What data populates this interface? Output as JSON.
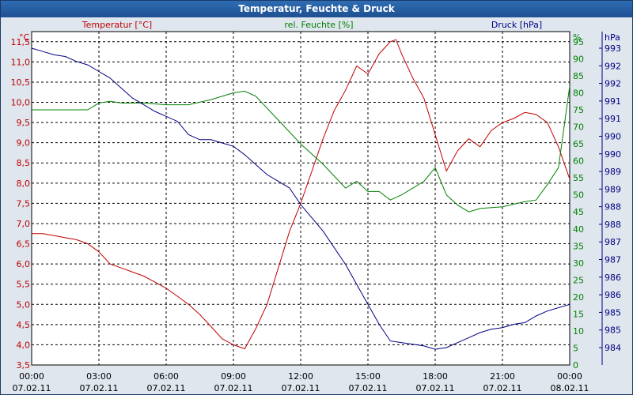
{
  "window": {
    "title": "Temperatur, Feuchte & Druck"
  },
  "chart_data": {
    "type": "line",
    "title": "Temperatur, Feuchte & Druck",
    "x": [
      "00:00",
      "03:00",
      "06:00",
      "09:00",
      "12:00",
      "15:00",
      "18:00",
      "21:00",
      "00:00"
    ],
    "x_dates": [
      "07.02.11",
      "07.02.11",
      "07.02.11",
      "07.02.11",
      "07.02.11",
      "07.02.11",
      "07.02.11",
      "07.02.11",
      "08.02.11"
    ],
    "axes": {
      "left": {
        "label": "Temperatur [°C]",
        "unit": "°C",
        "min": 3.5,
        "max": 11.75,
        "color": "#c00000",
        "ticks": [
          "3,5",
          "4,0",
          "4,5",
          "5,0",
          "5,5",
          "6,0",
          "6,5",
          "7,0",
          "7,5",
          "8,0",
          "8,5",
          "9,0",
          "9,5",
          "10,0",
          "10,5",
          "11,0",
          "11,5"
        ]
      },
      "middle": {
        "label": "rel. Feuchte [%]",
        "unit": "%",
        "min": 0,
        "max": 98,
        "color": "#008000",
        "ticks": [
          "0",
          "5",
          "10",
          "15",
          "20",
          "25",
          "30",
          "35",
          "40",
          "45",
          "50",
          "55",
          "60",
          "65",
          "70",
          "75",
          "80",
          "85",
          "90",
          "95"
        ]
      },
      "right": {
        "label": "Druck [hPa]",
        "unit": "hPa",
        "color": "#000080",
        "ticks": [
          "984",
          "985",
          "985",
          "986",
          "986",
          "987",
          "987",
          "988",
          "988",
          "989",
          "989",
          "990",
          "990",
          "991",
          "991",
          "992",
          "992",
          "993"
        ]
      }
    },
    "series": [
      {
        "name": "Temperatur",
        "unit": "°C",
        "color": "#c00000",
        "points": [
          [
            0,
            6.75
          ],
          [
            0.5,
            6.75
          ],
          [
            1,
            6.7
          ],
          [
            1.5,
            6.65
          ],
          [
            2,
            6.6
          ],
          [
            2.5,
            6.5
          ],
          [
            3,
            6.3
          ],
          [
            3.5,
            6.0
          ],
          [
            4,
            5.9
          ],
          [
            4.5,
            5.8
          ],
          [
            5,
            5.7
          ],
          [
            5.5,
            5.55
          ],
          [
            6,
            5.4
          ],
          [
            6.5,
            5.2
          ],
          [
            7,
            5.0
          ],
          [
            7.5,
            4.75
          ],
          [
            8,
            4.45
          ],
          [
            8.5,
            4.15
          ],
          [
            9,
            4.0
          ],
          [
            9.5,
            3.9
          ],
          [
            10,
            4.4
          ],
          [
            10.5,
            5.0
          ],
          [
            11,
            5.9
          ],
          [
            11.5,
            6.8
          ],
          [
            12,
            7.5
          ],
          [
            12.5,
            8.3
          ],
          [
            13,
            9.1
          ],
          [
            13.5,
            9.8
          ],
          [
            14,
            10.3
          ],
          [
            14.5,
            10.9
          ],
          [
            15,
            10.7
          ],
          [
            15.5,
            11.2
          ],
          [
            16,
            11.5
          ],
          [
            16.25,
            11.55
          ],
          [
            16.5,
            11.2
          ],
          [
            17,
            10.6
          ],
          [
            17.5,
            10.1
          ],
          [
            18,
            9.2
          ],
          [
            18.5,
            8.3
          ],
          [
            19,
            8.8
          ],
          [
            19.5,
            9.1
          ],
          [
            20,
            8.9
          ],
          [
            20.5,
            9.3
          ],
          [
            21,
            9.5
          ],
          [
            21.5,
            9.6
          ],
          [
            22,
            9.75
          ],
          [
            22.5,
            9.7
          ],
          [
            23,
            9.5
          ],
          [
            23.5,
            8.9
          ],
          [
            24,
            8.1
          ]
        ]
      },
      {
        "name": "rel. Feuchte",
        "unit": "%",
        "color": "#008000",
        "points": [
          [
            0,
            75
          ],
          [
            1,
            75
          ],
          [
            2,
            75
          ],
          [
            2.5,
            75
          ],
          [
            3,
            77
          ],
          [
            3.5,
            77.5
          ],
          [
            4,
            77
          ],
          [
            5,
            77
          ],
          [
            6,
            76.5
          ],
          [
            7,
            76.5
          ],
          [
            8,
            78
          ],
          [
            9,
            80
          ],
          [
            9.5,
            80.5
          ],
          [
            10,
            79
          ],
          [
            11,
            72
          ],
          [
            12,
            65
          ],
          [
            13,
            59
          ],
          [
            14,
            52
          ],
          [
            14.5,
            54
          ],
          [
            15,
            51
          ],
          [
            15.5,
            51
          ],
          [
            16,
            48.5
          ],
          [
            16.5,
            50
          ],
          [
            17,
            52
          ],
          [
            17.5,
            54
          ],
          [
            18,
            58
          ],
          [
            18.5,
            50
          ],
          [
            19,
            47
          ],
          [
            19.5,
            45
          ],
          [
            20,
            46
          ],
          [
            21,
            46.5
          ],
          [
            22,
            48
          ],
          [
            22.5,
            48.5
          ],
          [
            23,
            53
          ],
          [
            23.5,
            58
          ],
          [
            24,
            82
          ]
        ]
      },
      {
        "name": "Druck",
        "unit": "hPa",
        "color": "#000080",
        "points": [
          [
            0,
            993.0
          ],
          [
            0.5,
            992.9
          ],
          [
            1,
            992.8
          ],
          [
            1.5,
            992.75
          ],
          [
            2,
            992.6
          ],
          [
            2.5,
            992.5
          ],
          [
            3,
            992.3
          ],
          [
            3.5,
            992.1
          ],
          [
            4,
            991.8
          ],
          [
            4.5,
            991.5
          ],
          [
            5,
            991.3
          ],
          [
            5.5,
            991.1
          ],
          [
            6,
            990.95
          ],
          [
            6.5,
            990.8
          ],
          [
            7,
            990.4
          ],
          [
            7.5,
            990.25
          ],
          [
            8,
            990.25
          ],
          [
            8.5,
            990.15
          ],
          [
            9,
            990.05
          ],
          [
            9.5,
            989.8
          ],
          [
            10,
            989.5
          ],
          [
            10.5,
            989.2
          ],
          [
            11,
            989.0
          ],
          [
            11.5,
            988.8
          ],
          [
            12,
            988.3
          ],
          [
            12.5,
            987.9
          ],
          [
            13,
            987.5
          ],
          [
            13.5,
            987.0
          ],
          [
            14,
            986.5
          ],
          [
            14.5,
            985.9
          ],
          [
            15,
            985.3
          ],
          [
            15.5,
            984.7
          ],
          [
            16,
            984.2
          ],
          [
            16.5,
            984.15
          ],
          [
            17,
            984.1
          ],
          [
            17.5,
            984.05
          ],
          [
            18,
            983.95
          ],
          [
            18.5,
            984.0
          ],
          [
            19,
            984.15
          ],
          [
            19.5,
            984.3
          ],
          [
            20,
            984.45
          ],
          [
            20.5,
            984.55
          ],
          [
            21,
            984.6
          ],
          [
            21.5,
            984.7
          ],
          [
            22,
            984.75
          ],
          [
            22.5,
            984.95
          ],
          [
            23,
            985.1
          ],
          [
            23.5,
            985.2
          ],
          [
            24,
            985.3
          ]
        ]
      }
    ]
  }
}
